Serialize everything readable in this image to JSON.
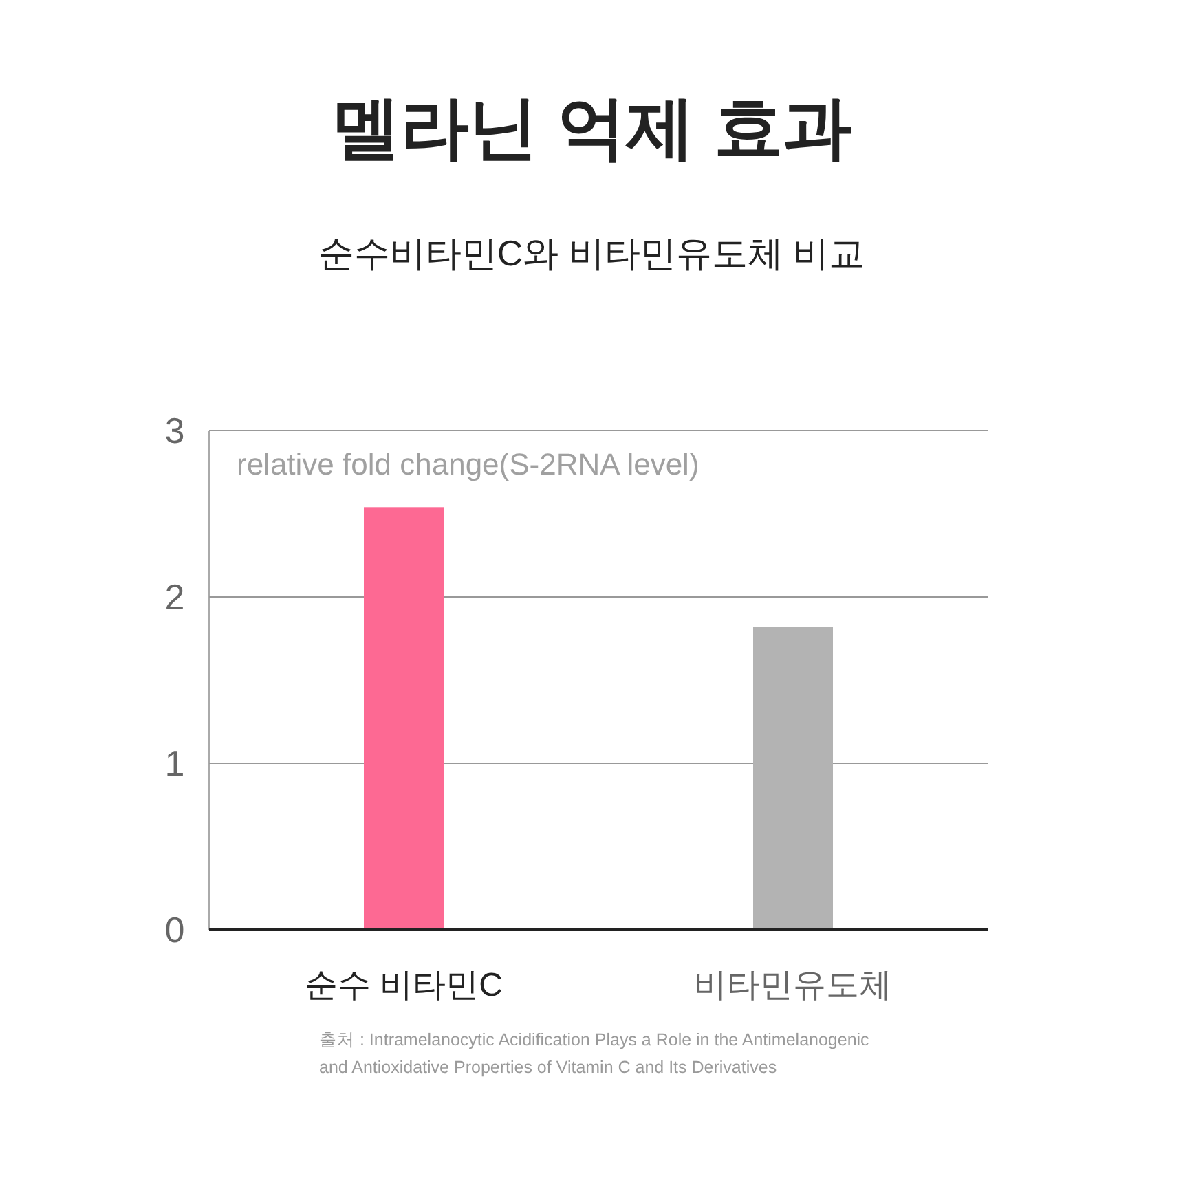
{
  "chart_data": {
    "type": "bar",
    "title": "멜라닌 억제 효과",
    "subtitle": "순수비타민C와 비타민유도체 비교",
    "ylabel": "relative fold change(S-2RNA level)",
    "categories": [
      "순수 비타민C",
      "비타민유도체"
    ],
    "values": [
      2.54,
      1.82
    ],
    "colors": [
      "#fd6993",
      "#b3b3b3"
    ],
    "ylim": [
      0,
      3
    ],
    "yticks": [
      0,
      1,
      2,
      3
    ],
    "grid": "y",
    "annotations": [
      "출처 : Intramelanocytic Acidification Plays a Role in the Antimelanogenic",
      "and Antioxidative Properties of Vitamin C and Its Derivatives"
    ]
  }
}
